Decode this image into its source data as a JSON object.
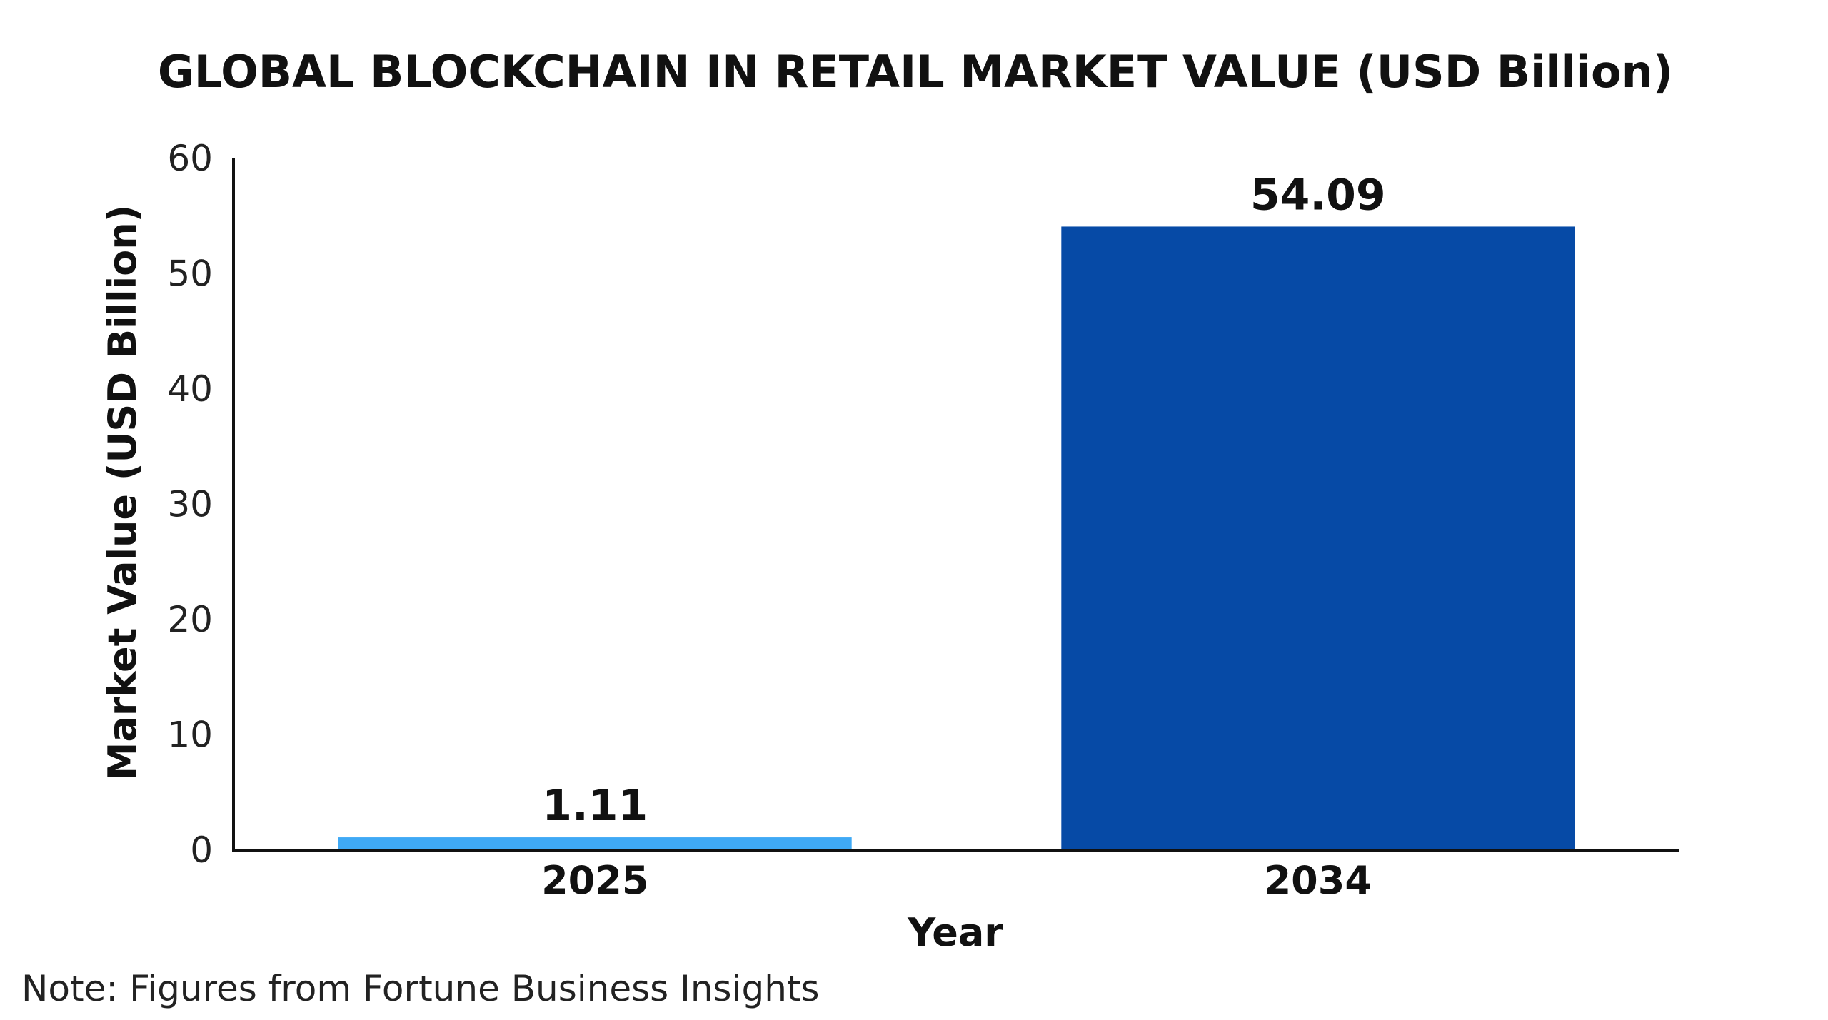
{
  "chart_data": {
    "type": "bar",
    "title": "GLOBAL BLOCKCHAIN IN RETAIL MARKET VALUE (USD Billion)",
    "xlabel": "Year",
    "ylabel": "Market Value (USD Billion)",
    "categories": [
      "2025",
      "2034"
    ],
    "values": [
      1.11,
      54.09
    ],
    "value_labels": [
      "1.11",
      "54.09"
    ],
    "bar_colors": [
      "#3fa9f5",
      "#064aa6"
    ],
    "ylim": [
      0,
      60
    ],
    "yticks": [
      0,
      10,
      20,
      30,
      40,
      50,
      60
    ],
    "grid": false,
    "legend": "none"
  },
  "note": "Note: Figures from Fortune Business Insights",
  "colors": {
    "axis": "#111111",
    "background": "#ffffff"
  }
}
